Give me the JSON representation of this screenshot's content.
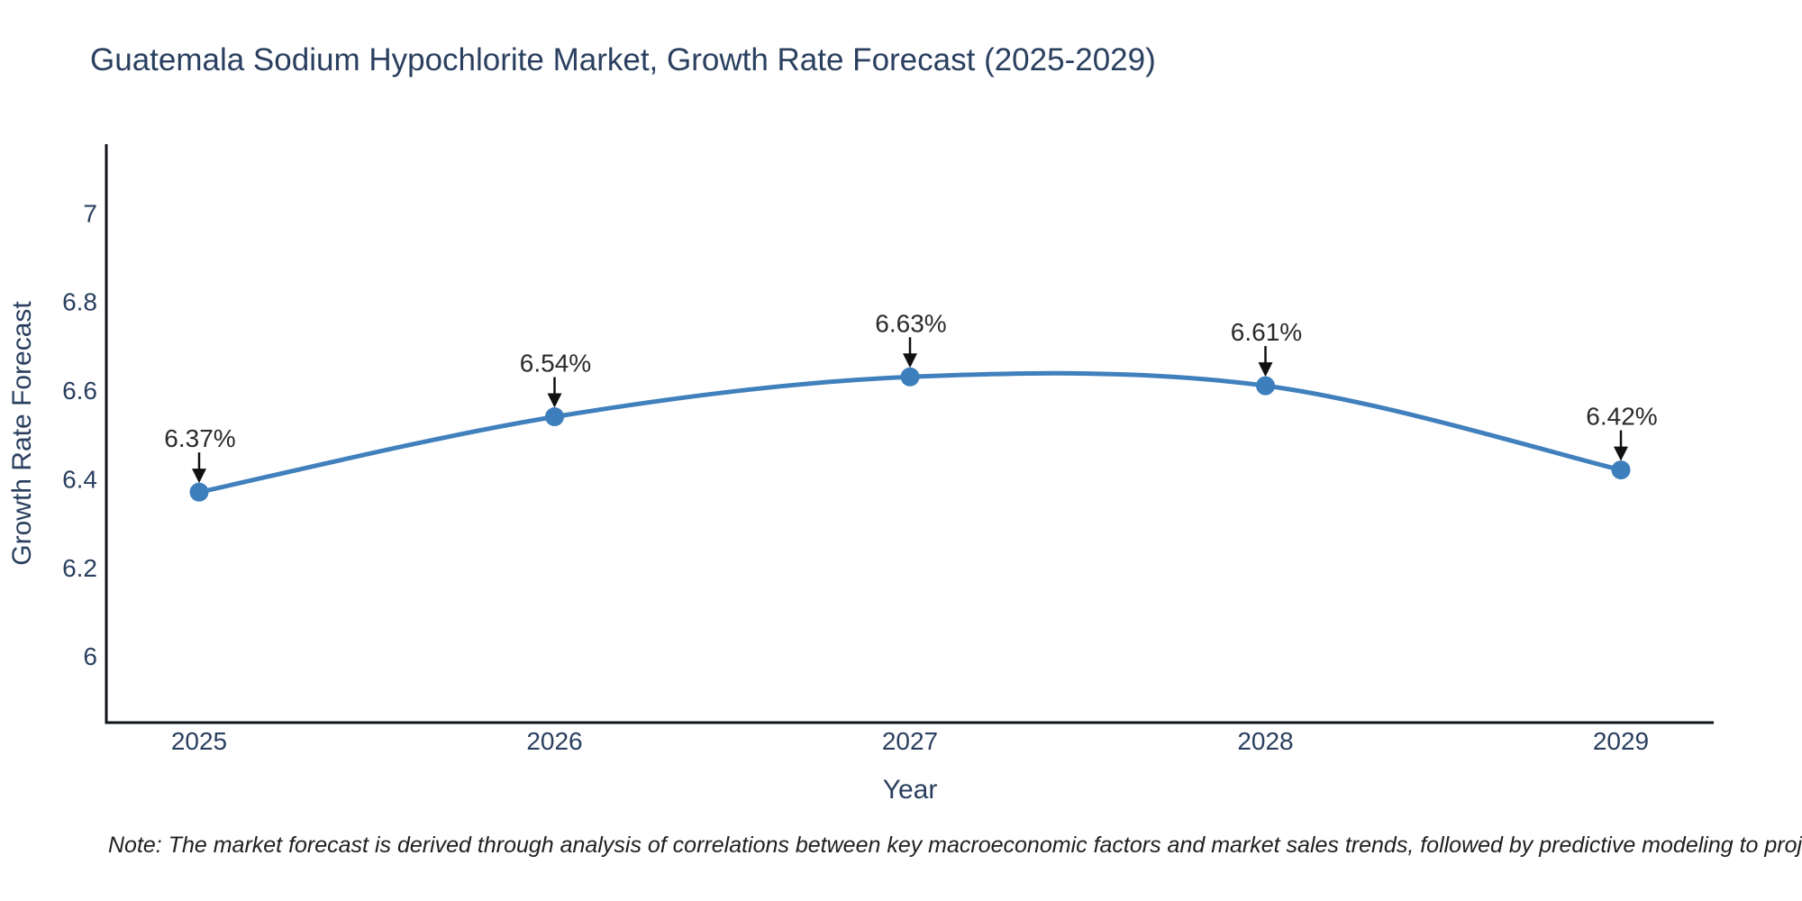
{
  "title": "Guatemala Sodium Hypochlorite Market, Growth Rate Forecast (2025-2029)",
  "note": "Note: The market forecast is derived through analysis of correlations between key macroeconomic factors and market sales trends, followed by predictive modeling to project future sales",
  "chart_data": {
    "type": "line",
    "title": "Guatemala Sodium Hypochlorite Market, Growth Rate Forecast (2025-2029)",
    "xlabel": "Year",
    "ylabel": "Growth Rate Forecast",
    "categories": [
      "2025",
      "2026",
      "2027",
      "2028",
      "2029"
    ],
    "values": [
      6.37,
      6.54,
      6.63,
      6.61,
      6.42
    ],
    "point_labels": [
      "6.37%",
      "6.54%",
      "6.63%",
      "6.61%",
      "6.42%"
    ],
    "series_name": "Growth Rate Forecast",
    "line_shape": "spline",
    "markers": true,
    "grid": false,
    "legend": false,
    "ylim": [
      5.85,
      7.155
    ],
    "yticks": [
      6,
      6.2,
      6.4,
      6.6,
      6.8,
      7
    ],
    "ytick_labels": [
      "6",
      "6.2",
      "6.4",
      "6.6",
      "6.8",
      "7"
    ],
    "colors": {
      "line": "#4080bd",
      "marker": "#3d7ebd",
      "annotation_text": "#2b2b2b",
      "annotation_arrow": "#111111",
      "title_text": "#2a3f5f",
      "axis_text": "#2a3f5f",
      "axis_line": "#101418",
      "note_text": "#202020",
      "background": "#ffffff"
    }
  }
}
